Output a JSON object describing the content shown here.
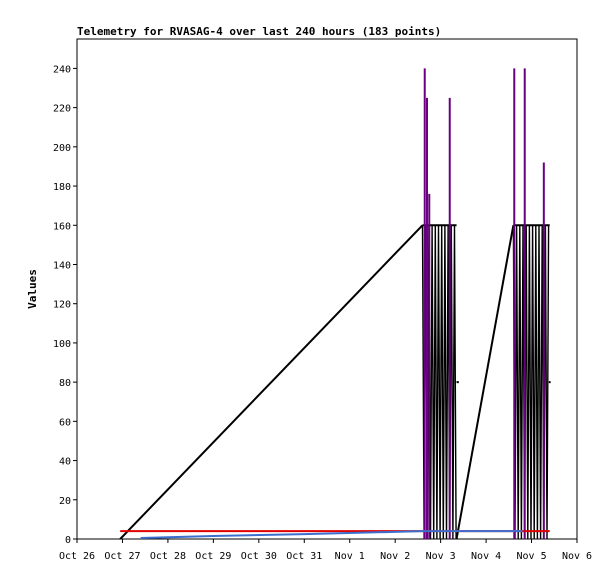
{
  "chart_data": {
    "type": "line",
    "title": "Telemetry for RVASAG-4 over last 240 hours (183 points)",
    "xlabel": "",
    "ylabel": "Values",
    "ylim": [
      0,
      255
    ],
    "xlim": [
      "Oct 26",
      "Nov 6"
    ],
    "grid": false,
    "legend": "none",
    "x_ticks": [
      "Oct 26",
      "Oct 27",
      "Oct 28",
      "Oct 29",
      "Oct 30",
      "Oct 31",
      "Nov 1",
      "Nov 2",
      "Nov 3",
      "Nov 4",
      "Nov 5",
      "Nov 6"
    ],
    "y_ticks": [
      0,
      20,
      40,
      60,
      80,
      100,
      120,
      140,
      160,
      180,
      200,
      220,
      240
    ],
    "series": [
      {
        "color": "#000000",
        "style": "line",
        "points": [
          [
            0.95,
            0
          ],
          [
            7.6,
            160
          ]
        ],
        "burst_ranges": [
          [
            7.6,
            8.35,
            0,
            160
          ],
          [
            9.6,
            10.4,
            0,
            160
          ]
        ],
        "points_after": [
          [
            8.35,
            0
          ],
          [
            9.6,
            160
          ]
        ],
        "extra_segments": [
          [
            8.35,
            80,
            8.4,
            80
          ],
          [
            10.38,
            80,
            10.42,
            80
          ]
        ]
      },
      {
        "color": "#6a0080",
        "style": "spikes",
        "spikes": [
          [
            7.65,
            240
          ],
          [
            7.7,
            225
          ],
          [
            7.75,
            176
          ],
          [
            8.2,
            225
          ],
          [
            9.62,
            240
          ],
          [
            9.85,
            240
          ],
          [
            10.27,
            192
          ]
        ]
      },
      {
        "color": "#e00000",
        "style": "line",
        "points": [
          [
            0.95,
            4
          ],
          [
            10.4,
            4
          ]
        ]
      },
      {
        "color": "#3a6fd0",
        "style": "line",
        "points": [
          [
            1.4,
            0.5
          ],
          [
            3.0,
            1.5
          ],
          [
            5.0,
            2.5
          ],
          [
            7.6,
            4
          ],
          [
            8.35,
            4
          ],
          [
            9.6,
            4
          ],
          [
            9.8,
            4
          ]
        ]
      }
    ]
  }
}
